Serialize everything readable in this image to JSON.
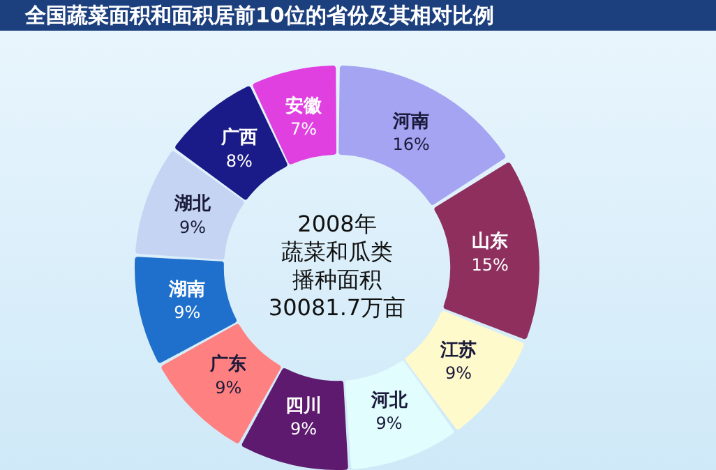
{
  "chart_data": {
    "type": "donut",
    "title": "全国蔬菜面积和面积居前10位的省份及其相对比例",
    "categories": [
      "河南",
      "山东",
      "江苏",
      "河北",
      "四川",
      "广东",
      "湖南",
      "湖北",
      "广西",
      "安徽"
    ],
    "values": [
      16,
      15,
      9,
      9,
      9,
      9,
      9,
      9,
      8,
      7
    ],
    "value_labels": [
      "16%",
      "15%",
      "9%",
      "9%",
      "9%",
      "9%",
      "9%",
      "9%",
      "8%",
      "7%"
    ],
    "colors": [
      "#a4a4f2",
      "#8e2f5e",
      "#fffacc",
      "#e2fdfd",
      "#5e1a6e",
      "#ff8080",
      "#1f70cc",
      "#c4d4f2",
      "#1a1a88",
      "#e040e0"
    ],
    "annotations": [
      "2008年",
      "蔬菜和瓜类",
      "播种面积",
      "30081.7万亩"
    ],
    "legend": false
  }
}
